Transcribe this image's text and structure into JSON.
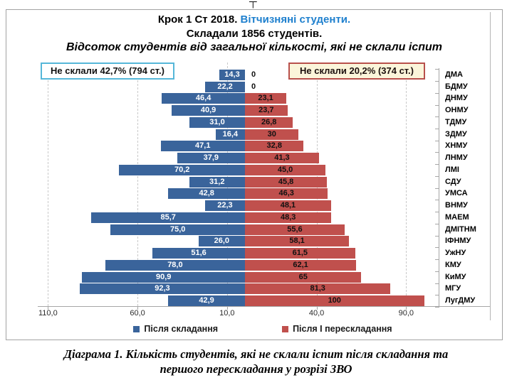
{
  "page": {
    "cropped_fragment": "┬"
  },
  "chart": {
    "title_part1": "Крок 1 Ст 2018.",
    "title_part2": "Вітчизняні студенти.",
    "subtitle": "Складали 1856 студентів.",
    "subtitle2": "Відсоток студентів від загальної кількості, які не склали іспит",
    "left_callout": "Не склали 42,7% (794 ст.)",
    "right_callout": "Не склали  20,2% (374 ст.)",
    "colors": {
      "after_exam_blue": "#3a649b",
      "after_retake_red": "#c0504d",
      "title_accent_blue": "#1f80ce",
      "left_callout_border": "#56b7d9",
      "right_callout_border": "#b8504b",
      "right_callout_bg": "#fbf5da"
    },
    "legend": [
      {
        "label": "Після складання",
        "color": "#3a649b"
      },
      {
        "label": "Після І перескладання",
        "color": "#c0504d"
      }
    ]
  },
  "chart_data": {
    "type": "bar",
    "orientation": "horizontal-diverging",
    "title": "Крок 1 Ст 2018. Вітчизняні студенти. Складали 1856 студентів. Відсоток студентів від загальної кількості, які не склали іспит",
    "categories": [
      "ДМА",
      "БДМУ",
      "ДНМУ",
      "ОНМУ",
      "ТДМУ",
      "ЗДМУ",
      "ХНМУ",
      "ЛНМУ",
      "ЛМІ",
      "СДУ",
      "УМСА",
      "ВНМУ",
      "МАЕМ",
      "ДМІТНМ",
      "ІФНМУ",
      "УжНУ",
      "КМУ",
      "КиМУ",
      "МГУ",
      "ЛугДМУ"
    ],
    "series": [
      {
        "name": "Після складання",
        "side": "left",
        "color": "#3a649b",
        "values": [
          14.3,
          22.2,
          46.4,
          40.9,
          31.0,
          16.4,
          47.1,
          37.9,
          70.2,
          31.2,
          42.8,
          22.3,
          85.7,
          75.0,
          26.0,
          51.6,
          78.0,
          90.9,
          92.3,
          42.9
        ],
        "labels": [
          "14,3",
          "22,2",
          "46,4",
          "40,9",
          "31,0",
          "16,4",
          "47,1",
          "37,9",
          "70,2",
          "31,2",
          "42,8",
          "22,3",
          "85,7",
          "75,0",
          "26,0",
          "51,6",
          "78,0",
          "90,9",
          "92,3",
          "42,9"
        ]
      },
      {
        "name": "Після І перескладання",
        "side": "right",
        "color": "#c0504d",
        "values": [
          0,
          0,
          23.1,
          23.7,
          26.8,
          30,
          32.8,
          41.3,
          45.0,
          45.8,
          46.3,
          48.1,
          48.3,
          55.6,
          58.1,
          61.5,
          62.1,
          65,
          81.3,
          100
        ],
        "labels": [
          "0",
          "0",
          "23,1",
          "23,7",
          "26,8",
          "30",
          "32,8",
          "41,3",
          "45,0",
          "45,8",
          "46,3",
          "48,1",
          "48,3",
          "55,6",
          "58,1",
          "61,5",
          "62,1",
          "65",
          "81,3",
          "100"
        ]
      }
    ],
    "x_ticks": [
      {
        "label": "110,0",
        "value": -110
      },
      {
        "label": "60,0",
        "value": -60
      },
      {
        "label": "10,0",
        "value": -10
      },
      {
        "label": "40,0",
        "value": 40
      },
      {
        "label": "90,0",
        "value": 90
      }
    ],
    "x_axis_span_units": [
      -120,
      140
    ],
    "grid": "vertical-dashed",
    "legend_position": "bottom-center",
    "value_labels": "inside-bars"
  },
  "caption": {
    "line1": "Діаграма 1. Кількість студентів, які не склали іспит після складання та",
    "line2": "першого перескладання у розрізі ЗВО"
  }
}
